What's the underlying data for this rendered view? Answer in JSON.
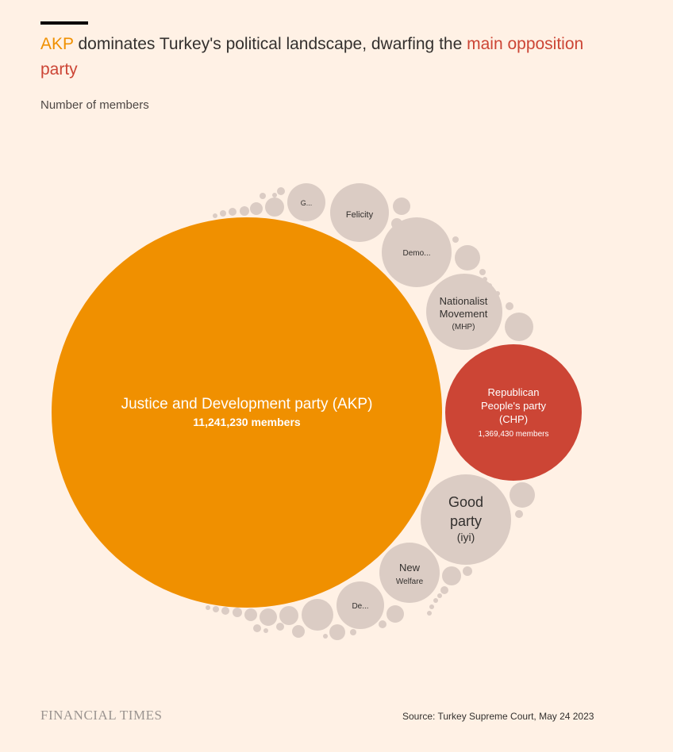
{
  "header": {
    "title_highlight_1": "AKP",
    "title_middle": " dominates Turkey's political landscape, dwarfing the ",
    "title_highlight_2": "main opposition party",
    "subtitle": "Number of members"
  },
  "footer": {
    "logo": "FINANCIAL TIMES",
    "source": "Source: Turkey Supreme Court, May 24 2023"
  },
  "colors": {
    "background": "#fff1e5",
    "akp": "#f09000",
    "chp": "#cc4535",
    "other": "#dbccc4"
  },
  "chart_data": {
    "type": "bubble",
    "title": "AKP dominates Turkey's political landscape, dwarfing the main opposition party",
    "subtitle": "Number of members",
    "series": [
      {
        "name": "Justice and Development party (AKP)",
        "value": 11241230,
        "value_label": "11,241,230 members",
        "label_lines": [
          "Justice and Development party (AKP)"
        ],
        "color": "#f09000"
      },
      {
        "name": "Republican People's party (CHP)",
        "value": 1369430,
        "value_label": "1,369,430 members",
        "label_lines": [
          "Republican",
          "People's party",
          "(CHP)"
        ],
        "color": "#cc4535"
      },
      {
        "name": "Good party (İyi)",
        "label_lines": [
          "Good",
          "party"
        ],
        "sub_label": "(iyi)",
        "color": "#dbccc4"
      },
      {
        "name": "Nationalist Movement (MHP)",
        "label_lines": [
          "Nationalist",
          "Movement"
        ],
        "sub_label": "(MHP)",
        "color": "#dbccc4"
      },
      {
        "name": "New Welfare",
        "label_lines": [
          "New"
        ],
        "sub_label": "Welfare",
        "color": "#dbccc4"
      },
      {
        "name": "Felicity",
        "label_lines": [
          "Felicity"
        ],
        "color": "#dbccc4"
      },
      {
        "name": "Demo...",
        "label_lines": [
          "Demo..."
        ],
        "color": "#dbccc4"
      },
      {
        "name": "De...",
        "label_lines": [
          "De..."
        ],
        "color": "#dbccc4"
      },
      {
        "name": "G...",
        "label_lines": [
          "G..."
        ],
        "color": "#dbccc4"
      }
    ]
  }
}
